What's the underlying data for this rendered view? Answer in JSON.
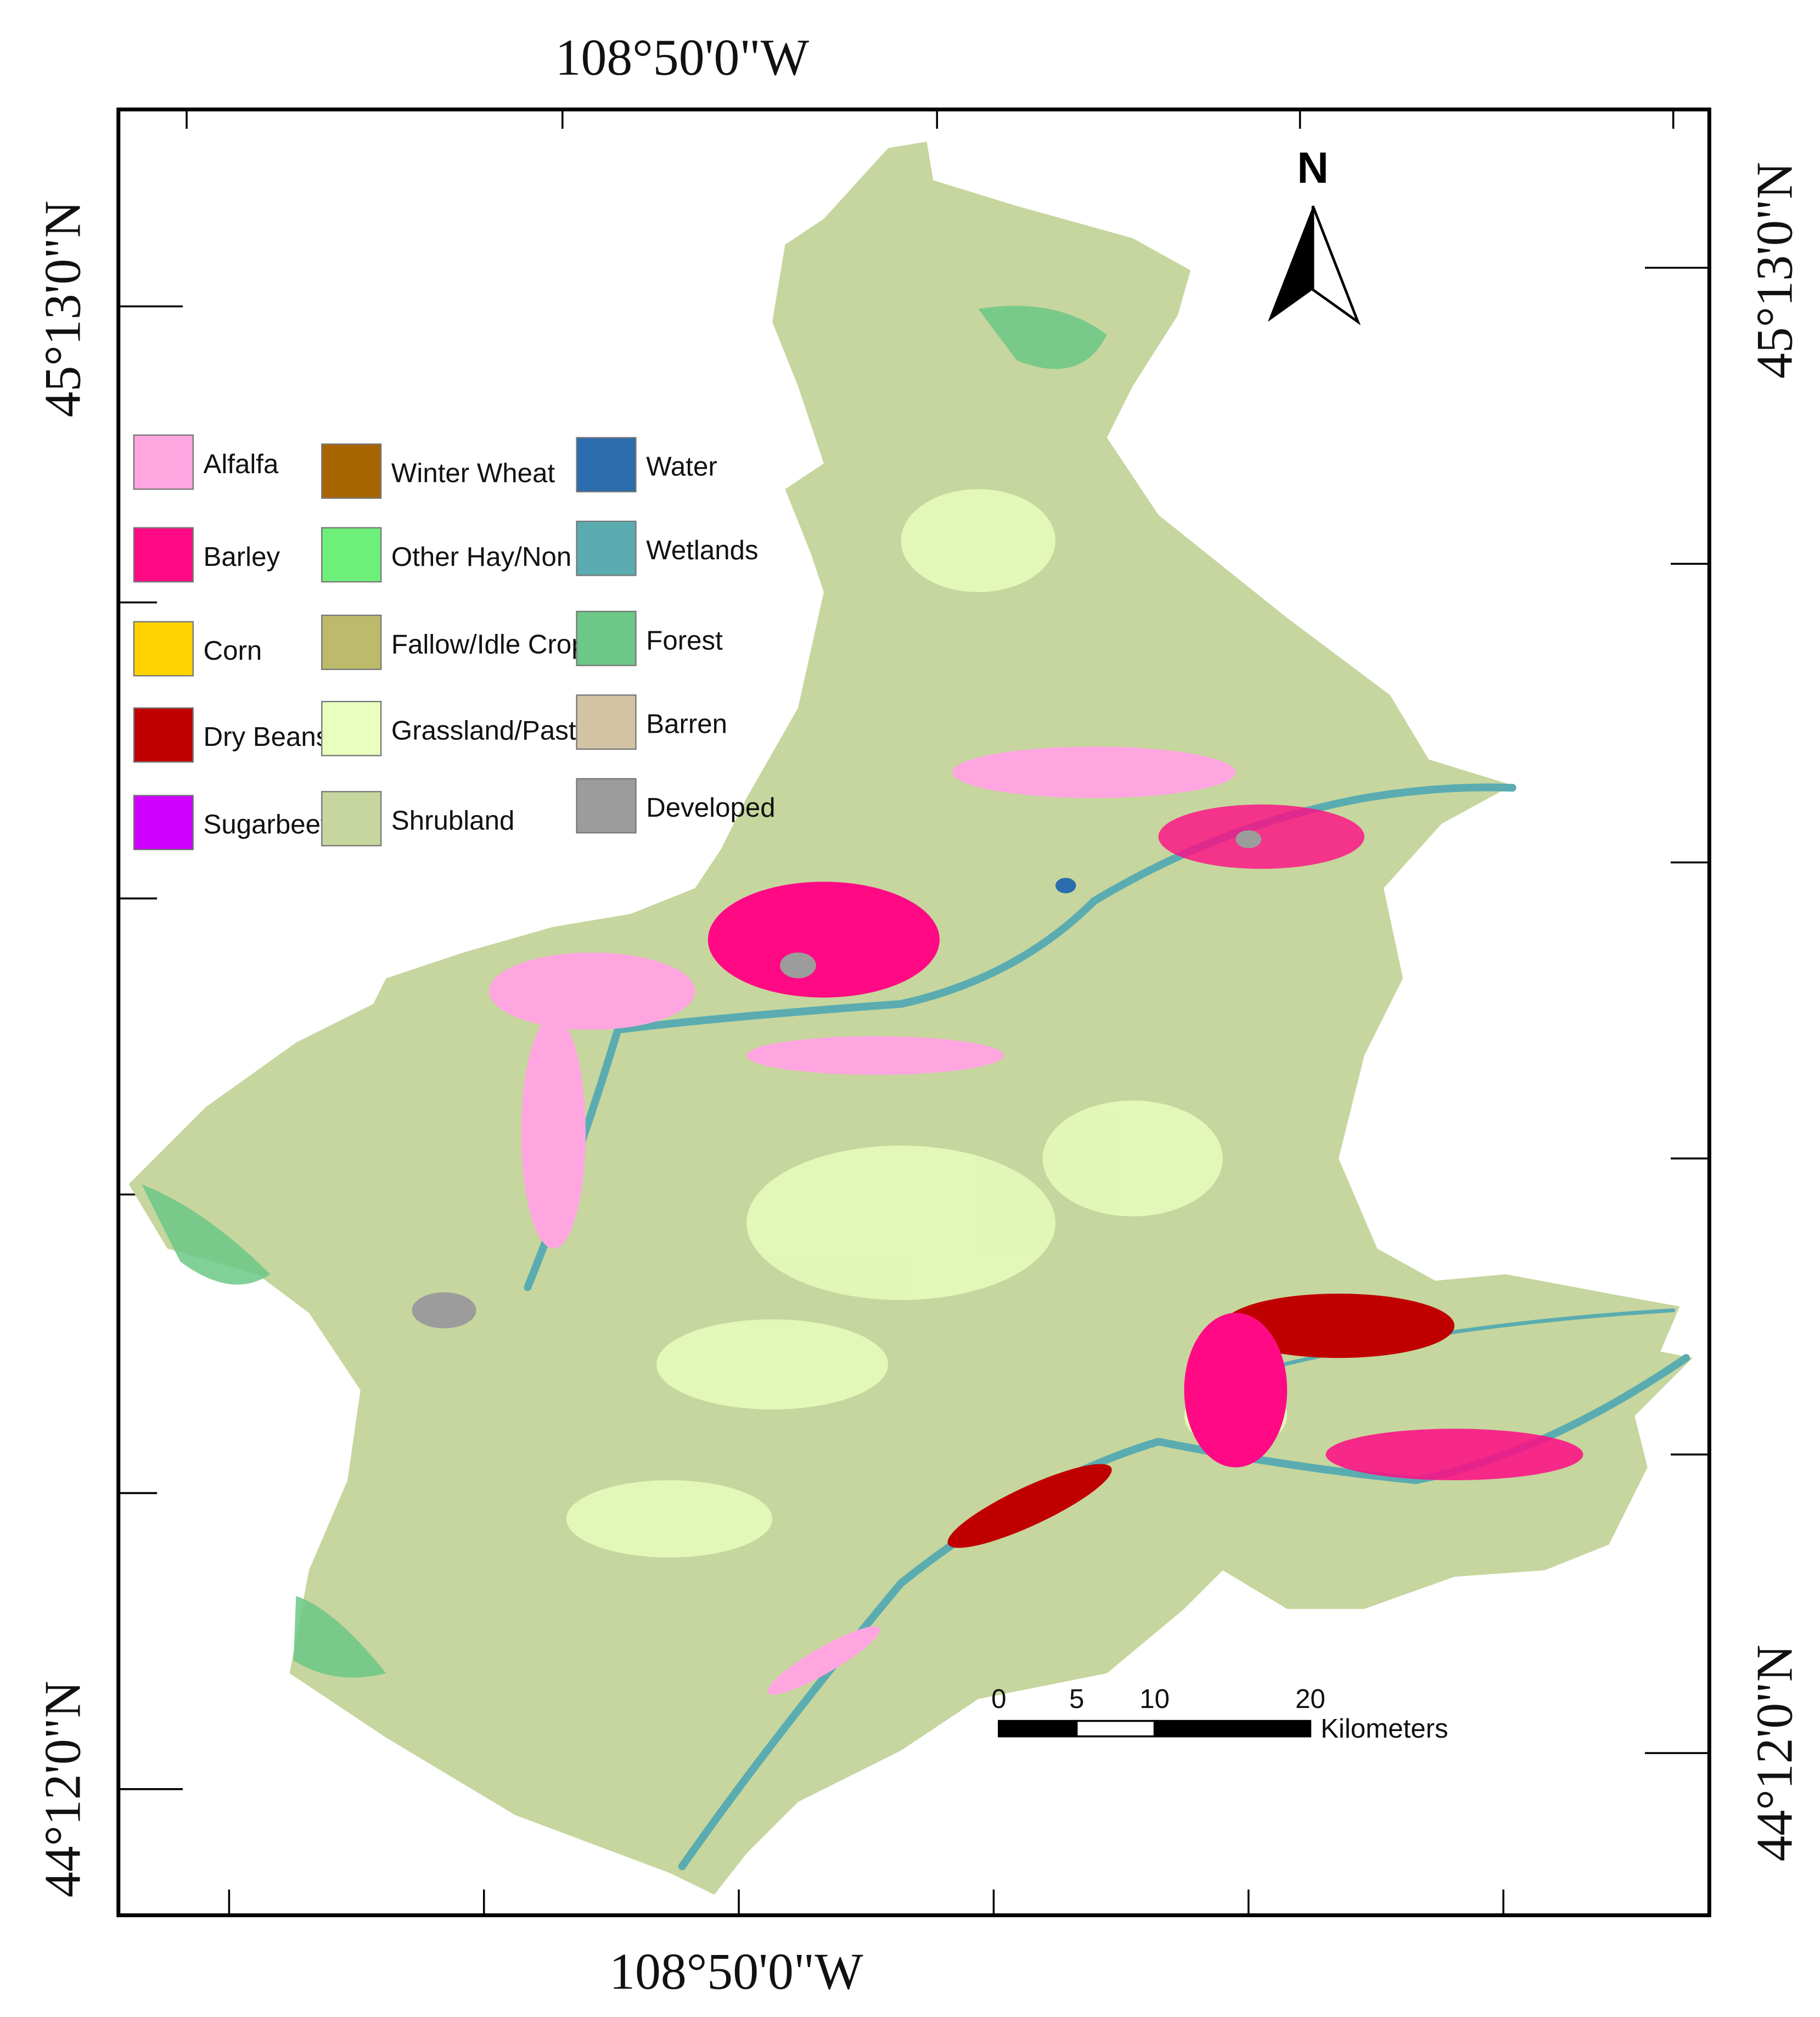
{
  "map": {
    "top_label": "108°50'0\"W",
    "bottom_label": "108°50'0\"W",
    "left_labels": [
      "45°13'0\"N",
      "44°12'0\"N"
    ],
    "right_labels": [
      "45°13'0\"N",
      "44°12'0\"N"
    ],
    "north": "N",
    "legend": {
      "items": [
        {
          "label": "Alfalfa",
          "color": "#ffa6e0"
        },
        {
          "label": "Barley",
          "color": "#ff0a84"
        },
        {
          "label": "Corn",
          "color": "#ffd200"
        },
        {
          "label": "Dry Beans",
          "color": "#c00000"
        },
        {
          "label": "Sugarbeets",
          "color": "#d000ff"
        },
        {
          "label": "Winter Wheat",
          "color": "#a86400"
        },
        {
          "label": "Other Hay/Non Alf",
          "color": "#6cf07a"
        },
        {
          "label": "Fallow/Idle Cropl",
          "color": "#bdbb6b"
        },
        {
          "label": "Grassland/Pasture",
          "color": "#e8ffbe"
        },
        {
          "label": "Shrubland",
          "color": "#c6d69e"
        },
        {
          "label": "Water",
          "color": "#2a6cad"
        },
        {
          "label": "Wetlands",
          "color": "#5aacb0"
        },
        {
          "label": "Forest",
          "color": "#6bc886"
        },
        {
          "label": "Barren",
          "color": "#d4c3a5"
        },
        {
          "label": "Developed",
          "color": "#9c9c9c"
        }
      ]
    },
    "scale_bar": {
      "ticks": [
        0,
        5,
        10,
        20
      ],
      "unit": "Kilometers"
    }
  }
}
